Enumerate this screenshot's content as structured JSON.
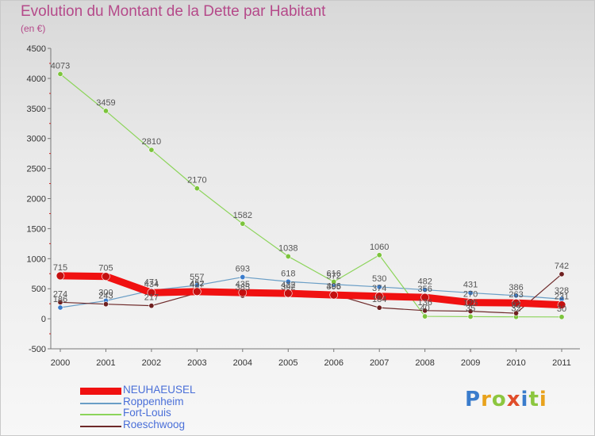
{
  "colors": {
    "title": "#b54a8a",
    "neuhaeusel": "#f01111",
    "roppenheim": "#6a9ec6",
    "fortlouis": "#8cd45a",
    "roeschwoog": "#6e2a2a",
    "neuhaeusel_marker": "#c41010",
    "roppenheim_marker": "#3a7ccc",
    "fortlouis_marker": "#7cc43c",
    "roeschwoog_marker": "#6e1f1f",
    "axis": "#777777",
    "axis_red": "#cc2222"
  },
  "logo": {
    "letters": [
      "P",
      "r",
      "o",
      "x",
      "i",
      "t",
      "i"
    ],
    "colors": [
      "#3a7ccc",
      "#e8a21c",
      "#8cc63f",
      "#e04d2a",
      "#3a7ccc",
      "#8cc63f",
      "#e8a21c"
    ]
  },
  "chart_data": {
    "type": "line",
    "title": "Evolution du Montant de la Dette par Habitant",
    "unit_label": "(en €)",
    "xlabel": "",
    "ylabel": "",
    "ylim": [
      -500,
      4500
    ],
    "y_ticks": [
      -500,
      0,
      500,
      1000,
      1500,
      2000,
      2500,
      3000,
      3500,
      4000,
      4500
    ],
    "x": [
      "2000",
      "2001",
      "2002",
      "2003",
      "2004",
      "2005",
      "2006",
      "2007",
      "2008",
      "2009",
      "2010",
      "2011"
    ],
    "legend_position": "bottom-left",
    "series": [
      {
        "name": "NEUHAEUSEL",
        "key": "neuhaeusel",
        "values": [
          715,
          705,
          434,
          452,
          435,
          422,
          395,
          374,
          356,
          270,
          263,
          231
        ],
        "labels": [
          "715",
          "705",
          "434",
          "452",
          "435",
          "422",
          "395",
          "374",
          "356",
          "270",
          "263",
          "231"
        ]
      },
      {
        "name": "Roppenheim",
        "key": "roppenheim",
        "values": [
          186,
          300,
          471,
          557,
          693,
          618,
          572,
          530,
          482,
          431,
          386,
          328
        ],
        "labels": [
          "186",
          "300",
          "471",
          "557",
          "693",
          "618",
          "572",
          "530",
          "482",
          "431",
          "386",
          "328"
        ]
      },
      {
        "name": "Fort-Louis",
        "key": "fortlouis",
        "values": [
          4073,
          3459,
          2810,
          2170,
          1582,
          1038,
          616,
          1060,
          40,
          35,
          32,
          30
        ],
        "labels": [
          "4073",
          "3459",
          "2810",
          "2170",
          "1582",
          "1038",
          "616",
          "1060",
          "40",
          "35",
          "32",
          "30"
        ]
      },
      {
        "name": "Roeschwoog",
        "key": "roeschwoog",
        "values": [
          274,
          243,
          217,
          427,
          385,
          392,
          406,
          184,
          136,
          125,
          92,
          742
        ],
        "labels": [
          "274",
          "243",
          "217",
          "427",
          "385",
          "392",
          "406",
          "184",
          "136",
          "125",
          "92",
          "742"
        ]
      }
    ]
  }
}
